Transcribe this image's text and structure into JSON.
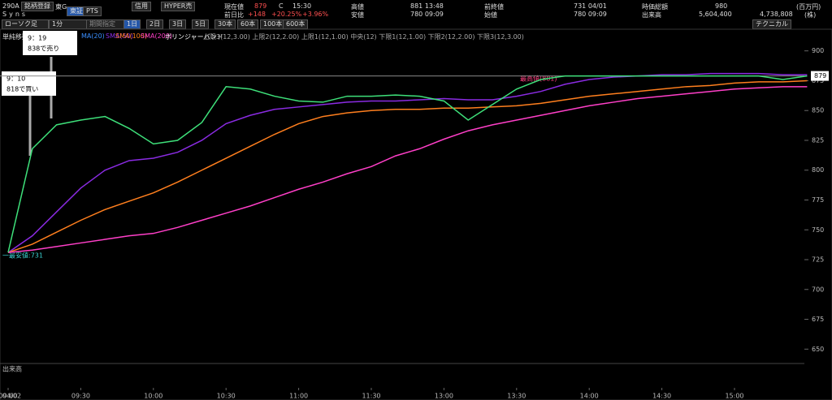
{
  "header": {
    "code": "290A",
    "register": "銘柄登録",
    "market": "東G",
    "name": "Syns",
    "exchange": "東証",
    "pts": "PTS",
    "margin": "信用",
    "hyper": "HYPER売",
    "price_label": "現在値",
    "price": "879",
    "flag": "C",
    "time": "15:30",
    "change_label": "前日比",
    "change": "+148",
    "change_pct": "+20.25%",
    "change_pct2": "+3.96%",
    "high_label": "高値",
    "high": "881 13:48",
    "low_label": "安値",
    "low": "780 09:09",
    "prev_label": "前終値",
    "prev": "731 04/01",
    "open_label": "始値",
    "open": "780 09:09",
    "cap_label": "時価総額",
    "cap": "980",
    "cap_unit": "(百万円)",
    "volume_label": "出来高",
    "volume": "5,604,400",
    "volume2": "4,738,808",
    "volume_unit": "(株)"
  },
  "toolbar": {
    "chart_kind": "ローソク足",
    "interval": "1分",
    "period": "期間指定",
    "spans": [
      "1日",
      "2日",
      "3日",
      "5日",
      "30本",
      "60本",
      "100本",
      "600本"
    ],
    "technical": "テクニカル"
  },
  "legend": {
    "prefix": "単純移動",
    "ma20": "MA(20)",
    "bollinger": "ボリンジャーバンド",
    "bands": "上限3(12,3.00)  上限2(12,2.00)  上限1(12,1.00)  中央(12)  下限1(12,1.00)  下限2(12,2.00)  下限3(12,3.00)"
  },
  "annotations": {
    "sell_time": "9：19",
    "sell_text": "838で売り",
    "buy_time": "9：10",
    "buy_text": "818で買い",
    "low": "一最安値:731",
    "high": "最高値(881)"
  },
  "volume_panel": "出来高",
  "date": "04/02",
  "chart_data": {
    "type": "line",
    "categories": [
      "09:00",
      null,
      null,
      "09:30",
      null,
      null,
      "10:00",
      null,
      null,
      "10:30",
      null,
      null,
      "11:00",
      null,
      null,
      "11:30",
      null,
      null,
      "13:00",
      null,
      null,
      "13:30",
      null,
      null,
      "14:00",
      null,
      null,
      "14:30",
      null,
      null,
      "15:00",
      null,
      null,
      null
    ],
    "price": {
      "color": "#3ee07a",
      "values": [
        731,
        818,
        838,
        842,
        845,
        835,
        822,
        825,
        840,
        870,
        868,
        862,
        858,
        857,
        862,
        862,
        863,
        862,
        858,
        842,
        855,
        868,
        876,
        879,
        879,
        879,
        879,
        879,
        879,
        879,
        879,
        879,
        876,
        879
      ]
    },
    "series": [
      {
        "name": "SMA(50)",
        "color": "#8a2be2",
        "values": [
          731,
          745,
          765,
          785,
          800,
          808,
          810,
          815,
          825,
          839,
          846,
          851,
          853,
          855,
          857,
          858,
          858,
          859,
          860,
          859,
          859,
          862,
          866,
          872,
          876,
          878,
          879,
          880,
          880,
          881,
          881,
          881,
          880,
          880
        ]
      },
      {
        "name": "SMA(100)",
        "color": "#ff7f1e",
        "values": [
          731,
          738,
          748,
          758,
          767,
          774,
          781,
          790,
          800,
          810,
          820,
          830,
          839,
          845,
          848,
          850,
          851,
          851,
          852,
          852,
          853,
          854,
          856,
          859,
          862,
          864,
          866,
          868,
          870,
          871,
          873,
          874,
          874,
          875
        ]
      },
      {
        "name": "SMA(200)",
        "color": "#ff3fc8",
        "values": [
          731,
          733,
          736,
          739,
          742,
          745,
          747,
          752,
          758,
          764,
          770,
          777,
          784,
          790,
          797,
          803,
          812,
          818,
          826,
          833,
          838,
          842,
          846,
          850,
          854,
          857,
          860,
          862,
          864,
          866,
          868,
          869,
          870,
          870
        ]
      }
    ],
    "current": 879,
    "ylim": [
      640,
      910
    ],
    "yticks": [
      650,
      675,
      700,
      725,
      750,
      775,
      800,
      825,
      850,
      875,
      900
    ]
  }
}
